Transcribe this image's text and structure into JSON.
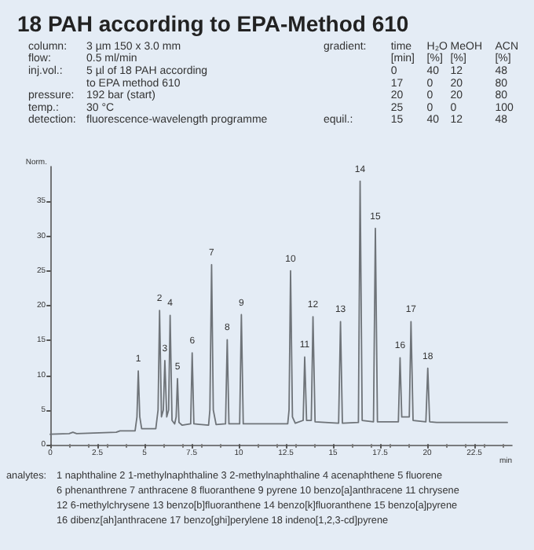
{
  "chart_data": {
    "type": "line",
    "title": "18 PAH according to EPA-Method 610",
    "xlabel": "min",
    "ylabel": "Norm.",
    "x": [
      0,
      1.0,
      1.2,
      1.4,
      3.5,
      3.7,
      4.5,
      4.6,
      4.67,
      4.75,
      4.85,
      5.6,
      5.72,
      5.8,
      5.9,
      6.0,
      6.08,
      6.18,
      6.28,
      6.36,
      6.46,
      6.6,
      6.68,
      6.75,
      6.83,
      7.0,
      7.45,
      7.53,
      7.62,
      8.4,
      8.47,
      8.56,
      8.65,
      8.8,
      9.3,
      9.39,
      9.48,
      10.05,
      10.14,
      10.24,
      12.6,
      12.67,
      12.75,
      12.85,
      13.0,
      13.42,
      13.5,
      13.6,
      13.85,
      13.94,
      14.05,
      15.3,
      15.4,
      15.5,
      16.35,
      16.44,
      16.55,
      17.15,
      17.25,
      17.36,
      18.47,
      18.56,
      18.65,
      19.05,
      19.14,
      19.25,
      19.93,
      20.03,
      20.13,
      20.5,
      24.25
    ],
    "series": [
      {
        "color": "#6e7378",
        "values": [
          1.5,
          1.6,
          1.8,
          1.6,
          1.8,
          2.0,
          2.0,
          4,
          10.6,
          4,
          2.3,
          2.3,
          5,
          19.3,
          4,
          5,
          12.1,
          4,
          5,
          18.6,
          3.5,
          3.0,
          4,
          9.5,
          3.2,
          2.8,
          3,
          13.2,
          3,
          2.8,
          5,
          25.9,
          5,
          2.9,
          3,
          15.1,
          3,
          3,
          18.7,
          3.0,
          3.0,
          5,
          25.0,
          4,
          3.1,
          3.5,
          12.6,
          3.5,
          3.5,
          18.4,
          3.3,
          3.1,
          17.7,
          3.1,
          3.2,
          37.9,
          3.5,
          3.3,
          31.1,
          3.3,
          3.3,
          12.5,
          4,
          4,
          17.7,
          3.5,
          3.3,
          11.0,
          3.3,
          3.2,
          3.2
        ]
      }
    ],
    "xlim": [
      0,
      24.5
    ],
    "xticks": [
      0,
      2.5,
      5,
      7.5,
      10,
      12.5,
      15,
      17.5,
      20,
      22.5
    ],
    "ylim": [
      0,
      40
    ],
    "yticks": [
      0,
      5,
      10,
      15,
      20,
      25,
      30,
      35
    ],
    "grid": false,
    "marker": "none",
    "line_style": "solid",
    "annotations": [
      "column:\nflow:\ninj.vol.:\n\npressure:\ntemp.:\ndetection:",
      "3 µm 150 x 3.0 mm\n0.5 ml/min\n5 µl of 18 PAH according\nto EPA method 610\n192 bar (start)\n30 °C\nfluorescence-wavelength programme",
      "gradient:",
      "time\n[min]\n0\n17\n20\n25\n15",
      "H₂O\n[%]\n40\n0\n0\n0\n40",
      "MeOH\n[%]\n12\n20\n20\n0\n12",
      "ACN\n[%]\n48\n80\n80\n100\n48",
      "equil.:",
      "analytes:",
      "1 naphthaline 2 1-methylnaphthaline 3 2-methylnaphthaline 4 acenaphthene 5 fluorene\n6 phenanthrene 7 anthracene 8 fluoranthene 9 pyrene 10 benzo[a]anthracene 11 chrysene\n12 6-methylchrysene 13 benzo[b]fluoranthene 14 benzo[k]fluoranthene 15 benzo[a]pyrene\n16 dibenz[ah]anthracene 17 benzo[ghi]perylene 18 indeno[1,2,3-cd]pyrene",
      {
        "text": "1",
        "x": 4.67,
        "y": 10.6
      },
      {
        "text": "2",
        "x": 5.8,
        "y": 19.3
      },
      {
        "text": "3",
        "x": 6.08,
        "y": 12.1
      },
      {
        "text": "4",
        "x": 6.36,
        "y": 18.6
      },
      {
        "text": "5",
        "x": 6.75,
        "y": 9.5
      },
      {
        "text": "6",
        "x": 7.53,
        "y": 13.2
      },
      {
        "text": "7",
        "x": 8.56,
        "y": 25.9
      },
      {
        "text": "8",
        "x": 9.39,
        "y": 15.1
      },
      {
        "text": "9",
        "x": 10.14,
        "y": 18.7
      },
      {
        "text": "10",
        "x": 12.75,
        "y": 25.0
      },
      {
        "text": "11",
        "x": 13.5,
        "y": 12.6
      },
      {
        "text": "12",
        "x": 13.94,
        "y": 18.4
      },
      {
        "text": "13",
        "x": 15.4,
        "y": 17.7
      },
      {
        "text": "14",
        "x": 16.44,
        "y": 37.9
      },
      {
        "text": "15",
        "x": 17.25,
        "y": 31.1
      },
      {
        "text": "16",
        "x": 18.56,
        "y": 12.5
      },
      {
        "text": "17",
        "x": 19.14,
        "y": 17.7
      },
      {
        "text": "18",
        "x": 20.03,
        "y": 11.0
      }
    ]
  }
}
